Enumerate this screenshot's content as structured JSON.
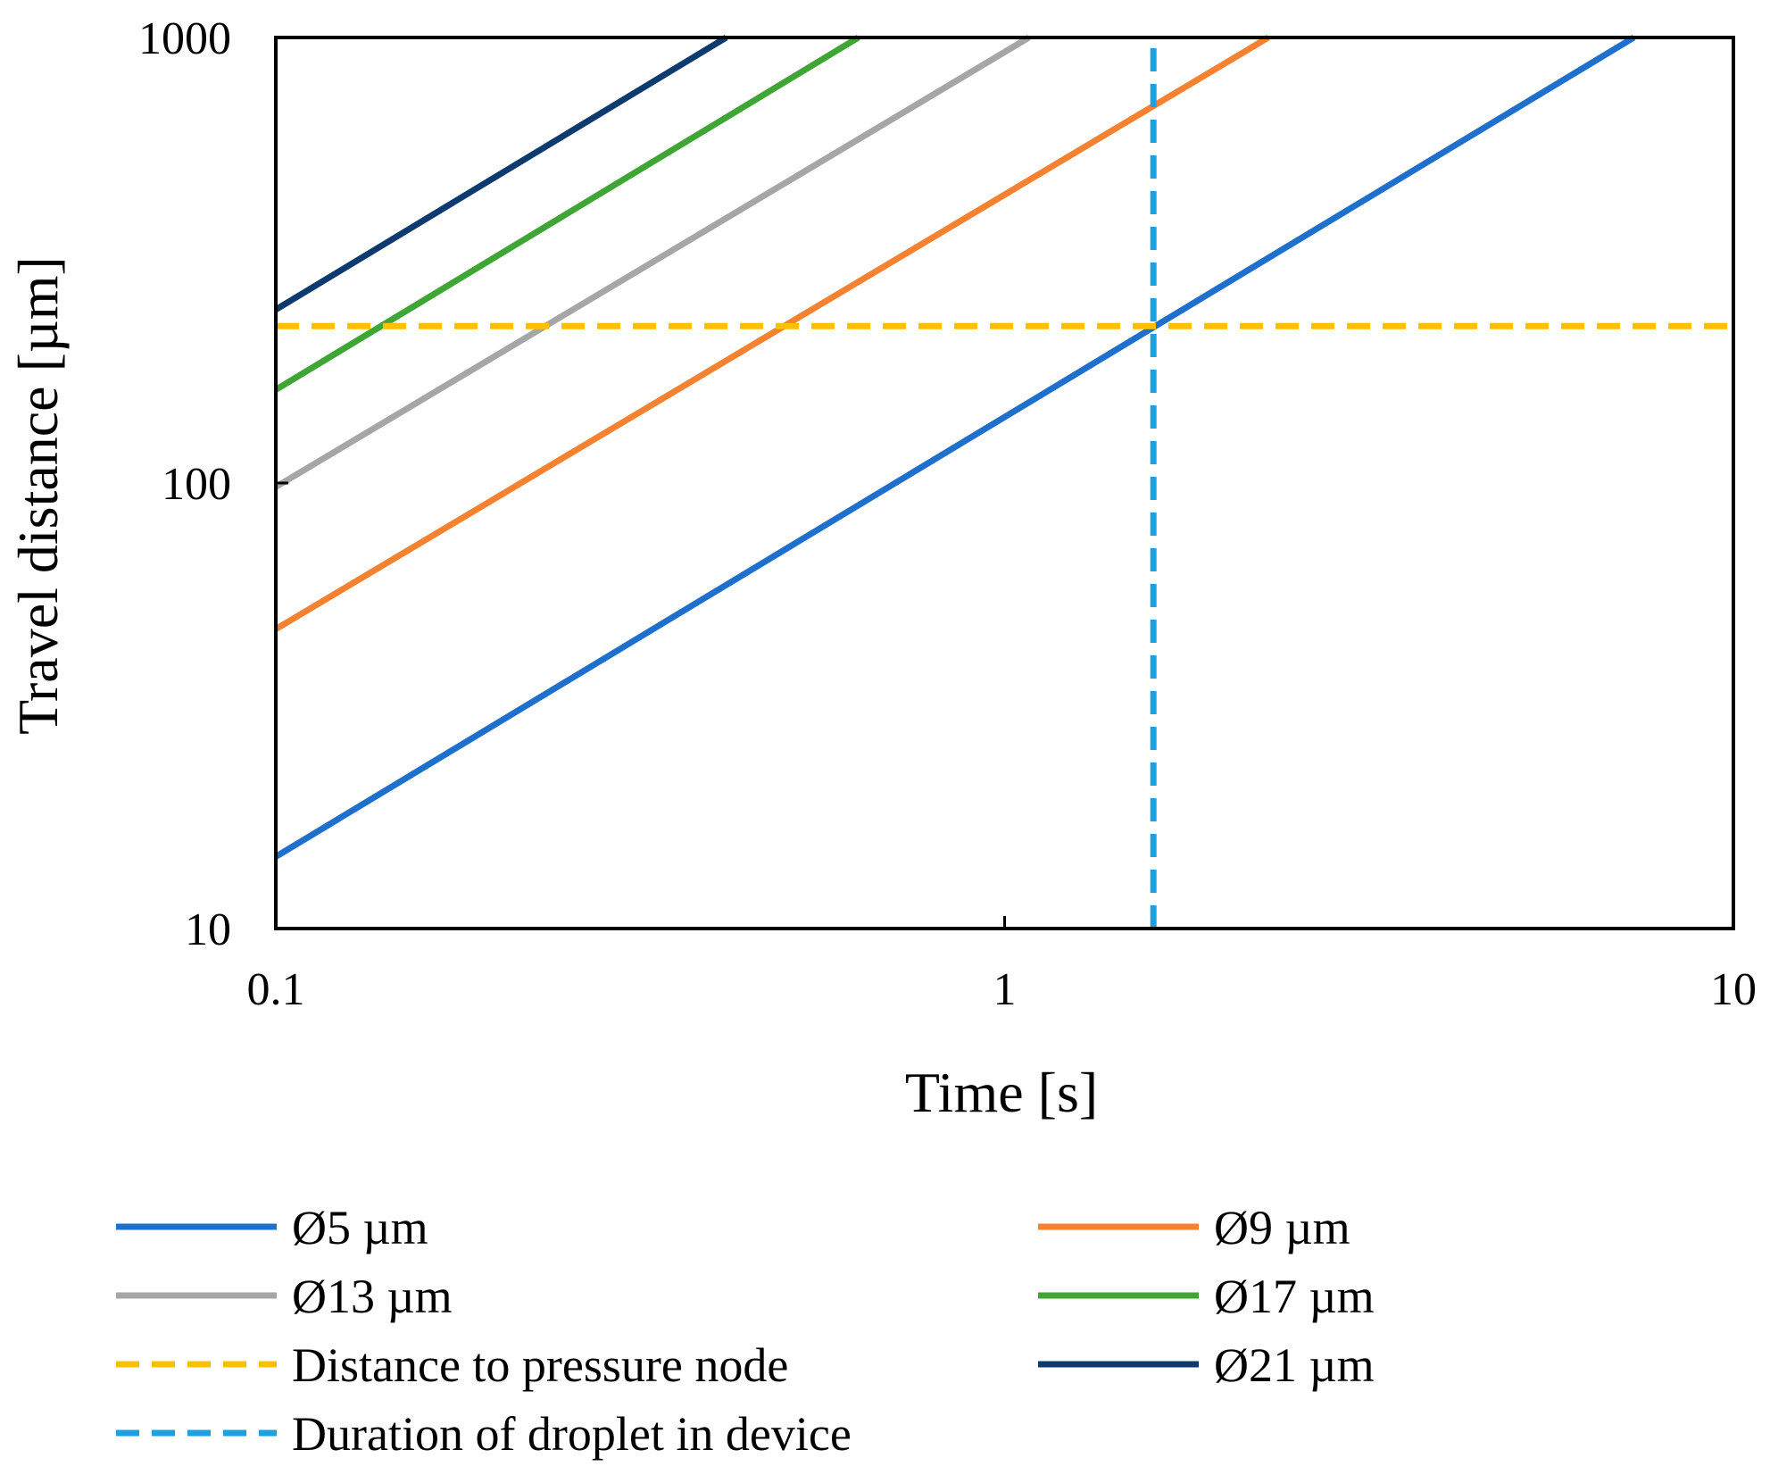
{
  "chart_data": {
    "type": "line",
    "xscale": "log",
    "yscale": "log",
    "xlim": [
      0.1,
      10
    ],
    "ylim": [
      10,
      1000
    ],
    "xlabel": "Time [s]",
    "ylabel": "Travel distance [µm]",
    "x_ticks": [
      {
        "value": 0.1,
        "label": "0.1"
      },
      {
        "value": 1,
        "label": "1"
      },
      {
        "value": 10,
        "label": "10"
      }
    ],
    "y_ticks": [
      {
        "value": 10,
        "label": "10"
      },
      {
        "value": 100,
        "label": "100"
      },
      {
        "value": 1000,
        "label": "1000"
      }
    ],
    "grid": false,
    "legend_position": "bottom",
    "series": [
      {
        "id": "d5",
        "name": "Ø5 µm",
        "color": "#1f6fcc",
        "dash": "solid",
        "x": [
          0.1,
          7.3
        ],
        "y": [
          14.5,
          1000
        ]
      },
      {
        "id": "d9",
        "name": "Ø9 µm",
        "color": "#f58231",
        "dash": "solid",
        "x": [
          0.1,
          2.3
        ],
        "y": [
          47,
          1000
        ]
      },
      {
        "id": "d13",
        "name": "Ø13 µm",
        "color": "#a6a6a6",
        "dash": "solid",
        "x": [
          0.1,
          1.08
        ],
        "y": [
          98,
          1000
        ]
      },
      {
        "id": "d17",
        "name": "Ø17 µm",
        "color": "#3fa535",
        "dash": "solid",
        "x": [
          0.1,
          0.63
        ],
        "y": [
          162,
          1000
        ]
      },
      {
        "id": "d21",
        "name": "Ø21 µm",
        "color": "#0d3b70",
        "dash": "solid",
        "x": [
          0.1,
          0.415
        ],
        "y": [
          245,
          1000
        ]
      },
      {
        "id": "node",
        "name": "Distance to pressure node",
        "color": "#ffc000",
        "dash": "dashed",
        "x": [
          0.1,
          10
        ],
        "y": [
          225,
          225
        ]
      },
      {
        "id": "duration",
        "name": "Duration of droplet in device",
        "color": "#1ca0e0",
        "dash": "dashed",
        "x": [
          1.6,
          1.6
        ],
        "y": [
          10,
          1000
        ]
      }
    ],
    "legend_order": [
      "d5",
      "d9",
      "d13",
      "d17",
      "node",
      "d21",
      "duration"
    ]
  }
}
